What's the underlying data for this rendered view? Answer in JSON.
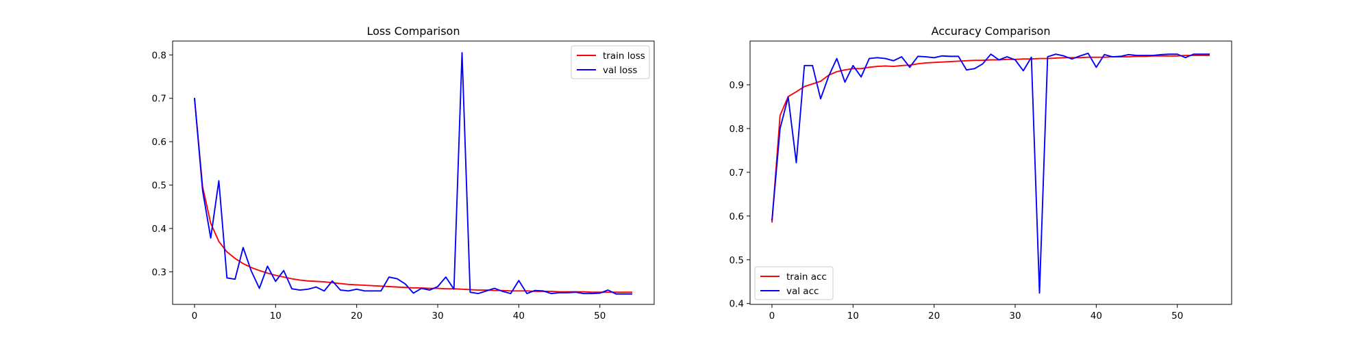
{
  "chart_data": [
    {
      "type": "line",
      "title": "Loss Comparison",
      "xlim": [
        -2.7,
        56.7
      ],
      "ylim": [
        0.225,
        0.832
      ],
      "xticks": [
        0,
        10,
        20,
        30,
        40,
        50
      ],
      "yticks": [
        0.3,
        0.4,
        0.5,
        0.6,
        0.7,
        0.8
      ],
      "xtick_labels": [
        "0",
        "10",
        "20",
        "30",
        "40",
        "50"
      ],
      "ytick_labels": [
        "0.3",
        "0.4",
        "0.5",
        "0.6",
        "0.7",
        "0.8"
      ],
      "legend_position": "top-right",
      "grid": false,
      "series": [
        {
          "name": "train loss",
          "color": "#ff0000",
          "values": [
            0.7,
            0.496,
            0.412,
            0.37,
            0.346,
            0.331,
            0.319,
            0.31,
            0.303,
            0.297,
            0.292,
            0.288,
            0.284,
            0.281,
            0.279,
            0.278,
            0.277,
            0.275,
            0.273,
            0.271,
            0.27,
            0.269,
            0.268,
            0.267,
            0.266,
            0.265,
            0.264,
            0.263,
            0.263,
            0.262,
            0.262,
            0.261,
            0.261,
            0.26,
            0.259,
            0.258,
            0.258,
            0.257,
            0.257,
            0.256,
            0.256,
            0.256,
            0.255,
            0.255,
            0.255,
            0.254,
            0.254,
            0.254,
            0.254,
            0.253,
            0.253,
            0.253,
            0.253,
            0.253,
            0.253
          ]
        },
        {
          "name": "val loss",
          "color": "#0000ff",
          "values": [
            0.701,
            0.487,
            0.378,
            0.51,
            0.286,
            0.283,
            0.356,
            0.302,
            0.262,
            0.313,
            0.278,
            0.303,
            0.261,
            0.258,
            0.26,
            0.265,
            0.256,
            0.279,
            0.258,
            0.256,
            0.26,
            0.256,
            0.256,
            0.256,
            0.288,
            0.284,
            0.272,
            0.251,
            0.262,
            0.258,
            0.266,
            0.288,
            0.26,
            0.805,
            0.253,
            0.25,
            0.256,
            0.262,
            0.255,
            0.25,
            0.28,
            0.25,
            0.257,
            0.256,
            0.25,
            0.252,
            0.252,
            0.253,
            0.25,
            0.25,
            0.251,
            0.258,
            0.249,
            0.249,
            0.249
          ]
        }
      ]
    },
    {
      "type": "line",
      "title": "Accuracy Comparison",
      "xlim": [
        -2.7,
        56.7
      ],
      "ylim": [
        0.398,
        1.0
      ],
      "xticks": [
        0,
        10,
        20,
        30,
        40,
        50
      ],
      "yticks": [
        0.4,
        0.5,
        0.6,
        0.7,
        0.8,
        0.9
      ],
      "xtick_labels": [
        "0",
        "10",
        "20",
        "30",
        "40",
        "50"
      ],
      "ytick_labels": [
        "0.4",
        "0.5",
        "0.6",
        "0.7",
        "0.8",
        "0.9"
      ],
      "legend_position": "bottom-left",
      "grid": false,
      "series": [
        {
          "name": "train acc",
          "color": "#ff0000",
          "values": [
            0.585,
            0.83,
            0.873,
            0.884,
            0.896,
            0.902,
            0.908,
            0.922,
            0.93,
            0.934,
            0.937,
            0.937,
            0.94,
            0.942,
            0.943,
            0.942,
            0.944,
            0.945,
            0.948,
            0.95,
            0.951,
            0.952,
            0.953,
            0.954,
            0.955,
            0.956,
            0.956,
            0.957,
            0.957,
            0.958,
            0.958,
            0.959,
            0.959,
            0.96,
            0.96,
            0.961,
            0.962,
            0.962,
            0.962,
            0.963,
            0.963,
            0.963,
            0.964,
            0.964,
            0.964,
            0.965,
            0.965,
            0.966,
            0.966,
            0.966,
            0.966,
            0.967,
            0.967,
            0.967,
            0.967
          ]
        },
        {
          "name": "val acc",
          "color": "#0000ff",
          "values": [
            0.59,
            0.8,
            0.872,
            0.722,
            0.944,
            0.944,
            0.868,
            0.92,
            0.96,
            0.906,
            0.944,
            0.918,
            0.96,
            0.962,
            0.96,
            0.955,
            0.964,
            0.94,
            0.965,
            0.964,
            0.962,
            0.966,
            0.965,
            0.965,
            0.934,
            0.937,
            0.948,
            0.97,
            0.957,
            0.964,
            0.957,
            0.932,
            0.963,
            0.424,
            0.964,
            0.97,
            0.966,
            0.959,
            0.966,
            0.972,
            0.94,
            0.969,
            0.964,
            0.965,
            0.969,
            0.967,
            0.967,
            0.967,
            0.969,
            0.97,
            0.97,
            0.962,
            0.97,
            0.97,
            0.97
          ]
        }
      ]
    }
  ]
}
